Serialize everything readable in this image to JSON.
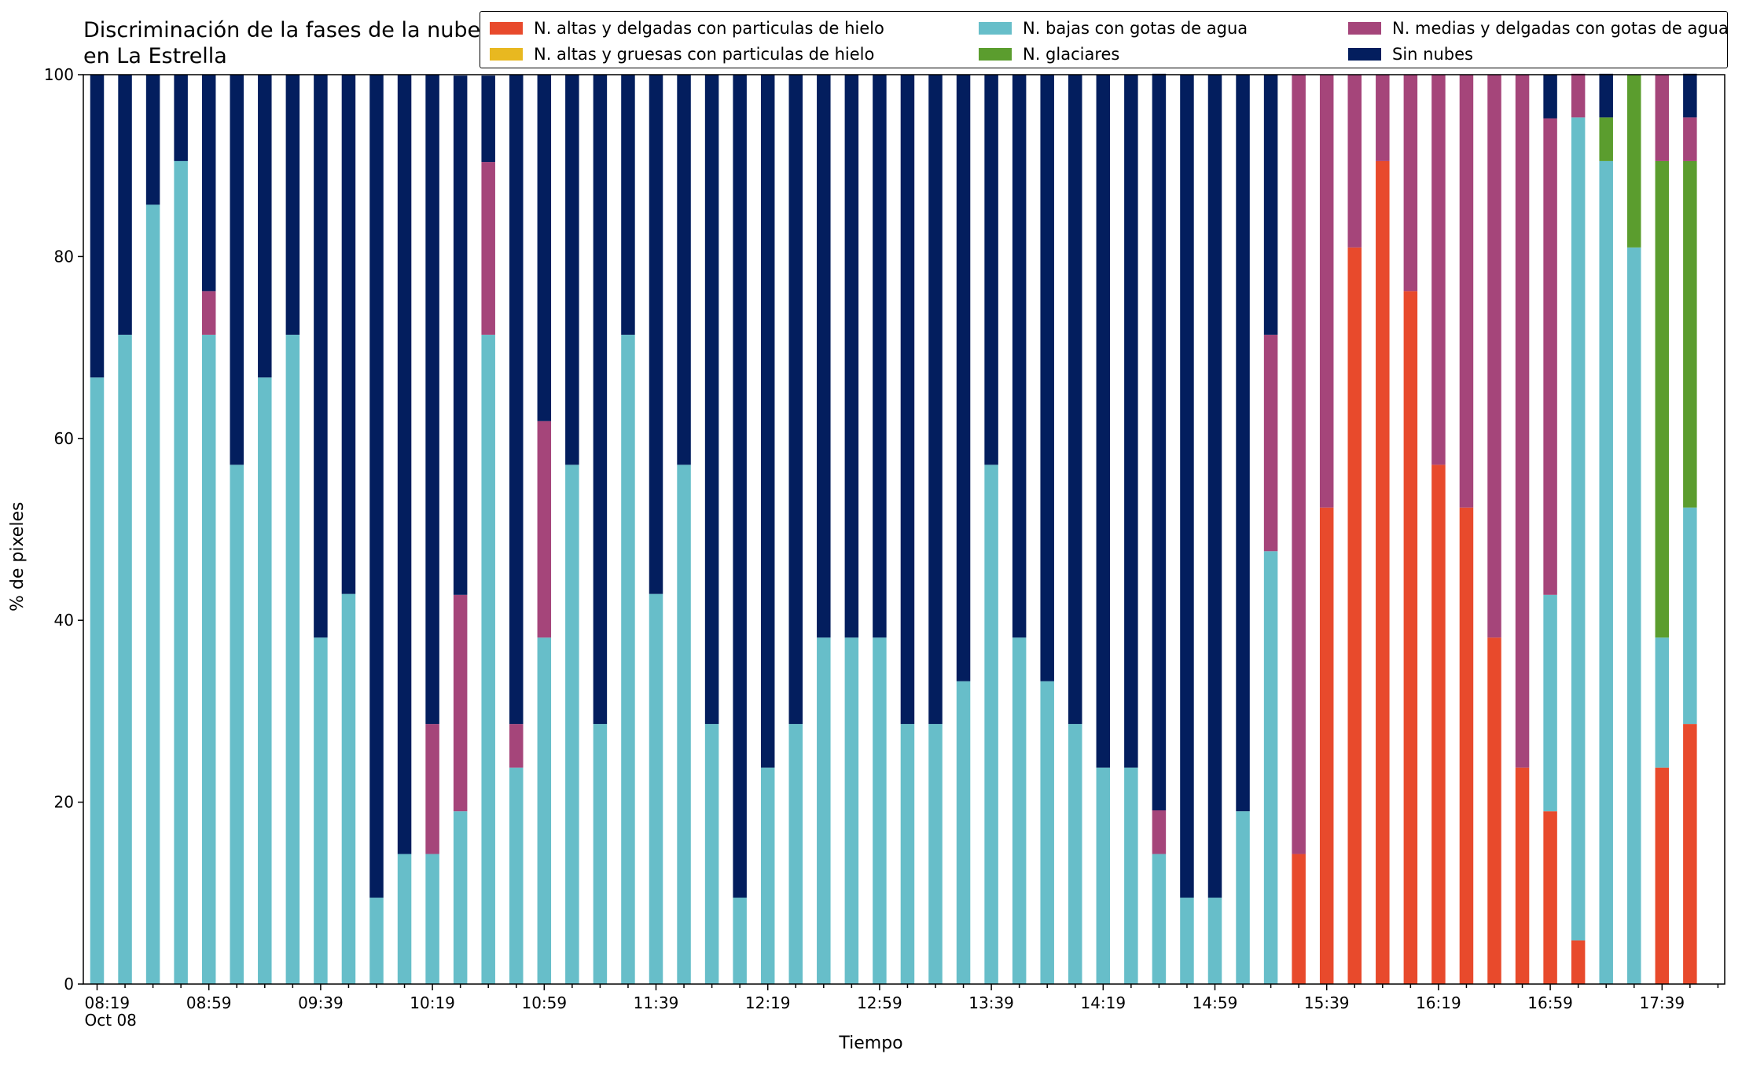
{
  "chart_data": {
    "type": "bar",
    "stacked": true,
    "title": "Discriminación de la fases de la nube en La Estrella",
    "xlabel": "Tiempo",
    "ylabel": "% de pixeles",
    "ylim": [
      0,
      100
    ],
    "yticks": [
      0,
      20,
      40,
      60,
      80,
      100
    ],
    "xtick_labels": [
      "08:19\nOct 08",
      "08:59",
      "09:39",
      "10:19",
      "10:59",
      "11:39",
      "12:19",
      "12:59",
      "13:39",
      "14:19",
      "14:59",
      "15:39",
      "16:19",
      "16:59",
      "17:39"
    ],
    "grid": false,
    "legend_position": "top-right",
    "categories": [
      "08:19",
      "08:29",
      "08:39",
      "08:49",
      "08:59",
      "09:09",
      "09:19",
      "09:29",
      "09:39",
      "09:49",
      "09:59",
      "10:09",
      "10:19",
      "10:29",
      "10:39",
      "10:49",
      "10:59",
      "11:09",
      "11:19",
      "11:29",
      "11:39",
      "11:49",
      "11:59",
      "12:09",
      "12:19",
      "12:29",
      "12:39",
      "12:49",
      "12:59",
      "13:09",
      "13:19",
      "13:29",
      "13:39",
      "13:49",
      "13:59",
      "14:09",
      "14:19",
      "14:29",
      "14:39",
      "14:49",
      "14:59",
      "15:09",
      "15:19",
      "15:29",
      "15:39",
      "15:49",
      "15:59",
      "16:09",
      "16:19",
      "16:29",
      "16:39",
      "16:49",
      "16:59",
      "17:09",
      "17:19",
      "17:29",
      "17:39",
      "17:49"
    ],
    "series": [
      {
        "name": "N. altas y delgadas con particulas de hielo",
        "color": "#e84a2c",
        "values": [
          0,
          0,
          0,
          0,
          0,
          0,
          0,
          0,
          0,
          0,
          0,
          0,
          0,
          0,
          0,
          0,
          0,
          0,
          0,
          0,
          0,
          0,
          0,
          0,
          0,
          0,
          0,
          0,
          0,
          0,
          0,
          0,
          0,
          0,
          0,
          0,
          0,
          0,
          0,
          0,
          0,
          0,
          0,
          14.3,
          52.4,
          81,
          90.5,
          76.2,
          57.1,
          52.4,
          38.1,
          23.8,
          19,
          4.8,
          0,
          0,
          23.8,
          28.6
        ]
      },
      {
        "name": "N. altas y gruesas con particulas de hielo",
        "color": "#e8b820",
        "values": [
          0,
          0,
          0,
          0,
          0,
          0,
          0,
          0,
          0,
          0,
          0,
          0,
          0,
          0,
          0,
          0,
          0,
          0,
          0,
          0,
          0,
          0,
          0,
          0,
          0,
          0,
          0,
          0,
          0,
          0,
          0,
          0,
          0,
          0,
          0,
          0,
          0,
          0,
          0,
          0,
          0,
          0,
          0,
          0,
          0,
          0,
          0,
          0,
          0,
          0,
          0,
          0,
          0,
          0,
          0,
          0,
          0,
          0
        ]
      },
      {
        "name": "N. bajas con gotas de agua",
        "color": "#67bec9",
        "values": [
          66.7,
          71.4,
          85.7,
          90.5,
          71.4,
          57.1,
          66.7,
          71.4,
          38.1,
          42.9,
          9.5,
          14.3,
          14.3,
          19,
          71.4,
          23.8,
          38.1,
          57.1,
          28.6,
          71.4,
          42.9,
          57.1,
          28.6,
          9.5,
          23.8,
          28.6,
          38.1,
          38.1,
          38.1,
          28.6,
          28.6,
          33.3,
          57.1,
          38.1,
          33.3,
          28.6,
          23.8,
          23.8,
          14.3,
          9.5,
          9.5,
          19,
          47.6,
          0,
          0,
          0,
          0,
          0,
          0,
          0,
          0,
          0,
          23.8,
          90.5,
          90.5,
          81,
          14.3,
          23.8
        ]
      },
      {
        "name": "N. glaciares",
        "color": "#5b9d2e",
        "values": [
          0,
          0,
          0,
          0,
          0,
          0,
          0,
          0,
          0,
          0,
          0,
          0,
          0,
          0,
          0,
          0,
          0,
          0,
          0,
          0,
          0,
          0,
          0,
          0,
          0,
          0,
          0,
          0,
          0,
          0,
          0,
          0,
          0,
          0,
          0,
          0,
          0,
          0,
          0,
          0,
          0,
          0,
          0,
          0,
          0,
          0,
          0,
          0,
          0,
          0,
          0,
          0,
          0,
          0,
          4.8,
          19,
          52.4,
          38.1
        ]
      },
      {
        "name": "N. medias y delgadas con gotas de agua",
        "color": "#a5457a",
        "values": [
          0,
          0,
          0,
          0,
          4.8,
          0,
          0,
          0,
          0,
          0,
          0,
          0,
          14.3,
          23.8,
          19,
          4.8,
          23.8,
          0,
          0,
          0,
          0,
          0,
          0,
          0,
          0,
          0,
          0,
          0,
          0,
          0,
          0,
          0,
          0,
          0,
          0,
          0,
          0,
          0,
          4.8,
          0,
          0,
          0,
          23.8,
          85.7,
          47.6,
          19,
          9.5,
          23.8,
          42.9,
          47.6,
          61.9,
          76.2,
          52.4,
          4.8,
          0,
          0,
          9.5,
          4.8
        ]
      },
      {
        "name": "Sin nubes",
        "color": "#031e5e",
        "values": [
          33.3,
          28.6,
          14.3,
          9.5,
          23.8,
          42.9,
          33.3,
          28.6,
          61.9,
          57.1,
          90.5,
          85.7,
          71.4,
          57.1,
          9.5,
          71.4,
          38.1,
          42.9,
          71.4,
          28.6,
          57.1,
          42.9,
          71.4,
          90.5,
          76.2,
          71.4,
          61.9,
          61.9,
          61.9,
          71.4,
          71.4,
          66.7,
          42.9,
          61.9,
          66.7,
          71.4,
          76.2,
          76.2,
          81,
          90.5,
          90.5,
          81,
          28.6,
          0,
          0,
          0,
          0,
          0,
          0,
          0,
          0,
          0,
          4.8,
          0,
          4.8,
          0,
          0,
          4.8
        ]
      }
    ]
  }
}
